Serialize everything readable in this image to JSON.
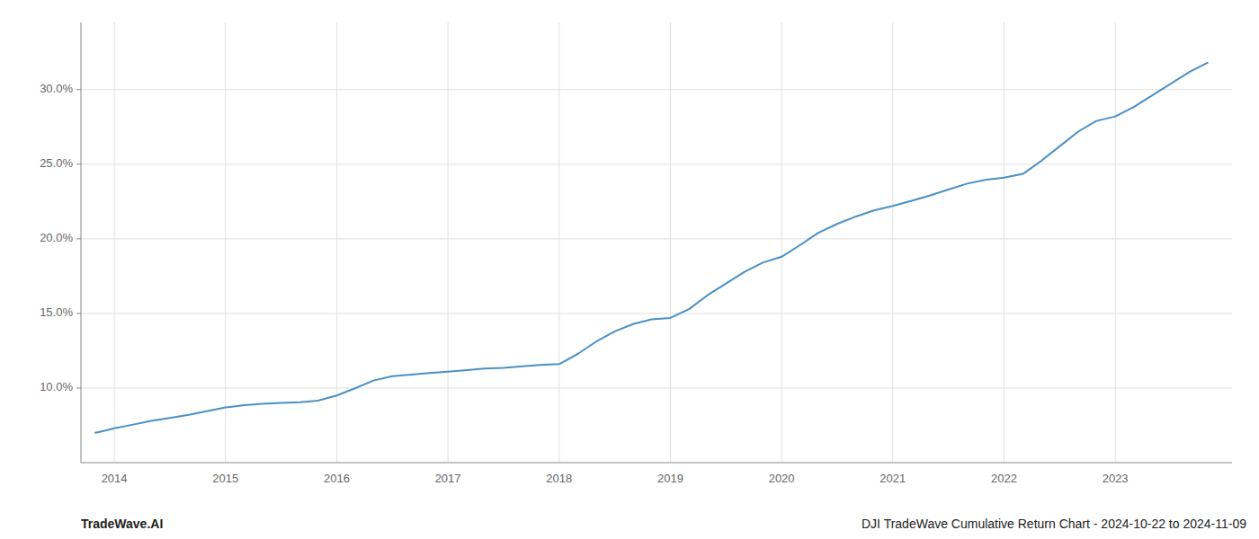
{
  "chart_data": {
    "type": "line",
    "title": "DJI TradeWave Cumulative Return Chart - 2024-10-22 to 2024-11-09",
    "subtitle": "TradeWave.AI",
    "color": "#4a90c4",
    "grid": true,
    "x": [
      2013.83,
      2013.92,
      2014.0,
      2014.17,
      2014.33,
      2014.5,
      2014.67,
      2014.83,
      2015.0,
      2015.17,
      2015.33,
      2015.5,
      2015.67,
      2015.83,
      2016.0,
      2016.17,
      2016.33,
      2016.5,
      2016.67,
      2016.83,
      2017.0,
      2017.17,
      2017.33,
      2017.5,
      2017.67,
      2017.83,
      2018.0,
      2018.17,
      2018.33,
      2018.5,
      2018.67,
      2018.83,
      2019.0,
      2019.17,
      2019.33,
      2019.5,
      2019.67,
      2019.83,
      2020.0,
      2020.17,
      2020.33,
      2020.5,
      2020.67,
      2020.83,
      2021.0,
      2021.17,
      2021.33,
      2021.5,
      2021.67,
      2021.83,
      2022.0,
      2022.17,
      2022.33,
      2022.5,
      2022.67,
      2022.83,
      2023.0,
      2023.17,
      2023.33,
      2023.5,
      2023.67,
      2023.83
    ],
    "values": [
      7.0,
      7.15,
      7.3,
      7.55,
      7.8,
      8.0,
      8.2,
      8.45,
      8.7,
      8.85,
      8.95,
      9.0,
      9.05,
      9.15,
      9.5,
      10.0,
      10.5,
      10.8,
      10.9,
      11.0,
      11.1,
      11.2,
      11.3,
      11.35,
      11.45,
      11.55,
      11.6,
      12.3,
      13.1,
      13.8,
      14.3,
      14.6,
      14.7,
      15.3,
      16.2,
      17.0,
      17.8,
      18.4,
      18.8,
      19.6,
      20.4,
      21.0,
      21.5,
      21.9,
      22.2,
      22.55,
      22.9,
      23.3,
      23.7,
      23.95,
      24.1,
      24.35,
      25.2,
      26.2,
      27.2,
      27.9,
      28.2,
      28.85,
      29.6,
      30.4,
      31.2,
      31.8
    ],
    "xlim": [
      2013.7,
      2024.05
    ],
    "xticks": [
      2014,
      2015,
      2016,
      2017,
      2018,
      2019,
      2020,
      2021,
      2022,
      2023
    ],
    "ylim": [
      5.0,
      34.5
    ],
    "yticks": [
      {
        "value": 10.0,
        "label": "10.0%"
      },
      {
        "value": 15.0,
        "label": "15.0%"
      },
      {
        "value": 20.0,
        "label": "20.0%"
      },
      {
        "value": 25.0,
        "label": "25.0%"
      },
      {
        "value": 30.0,
        "label": "30.0%"
      }
    ]
  }
}
